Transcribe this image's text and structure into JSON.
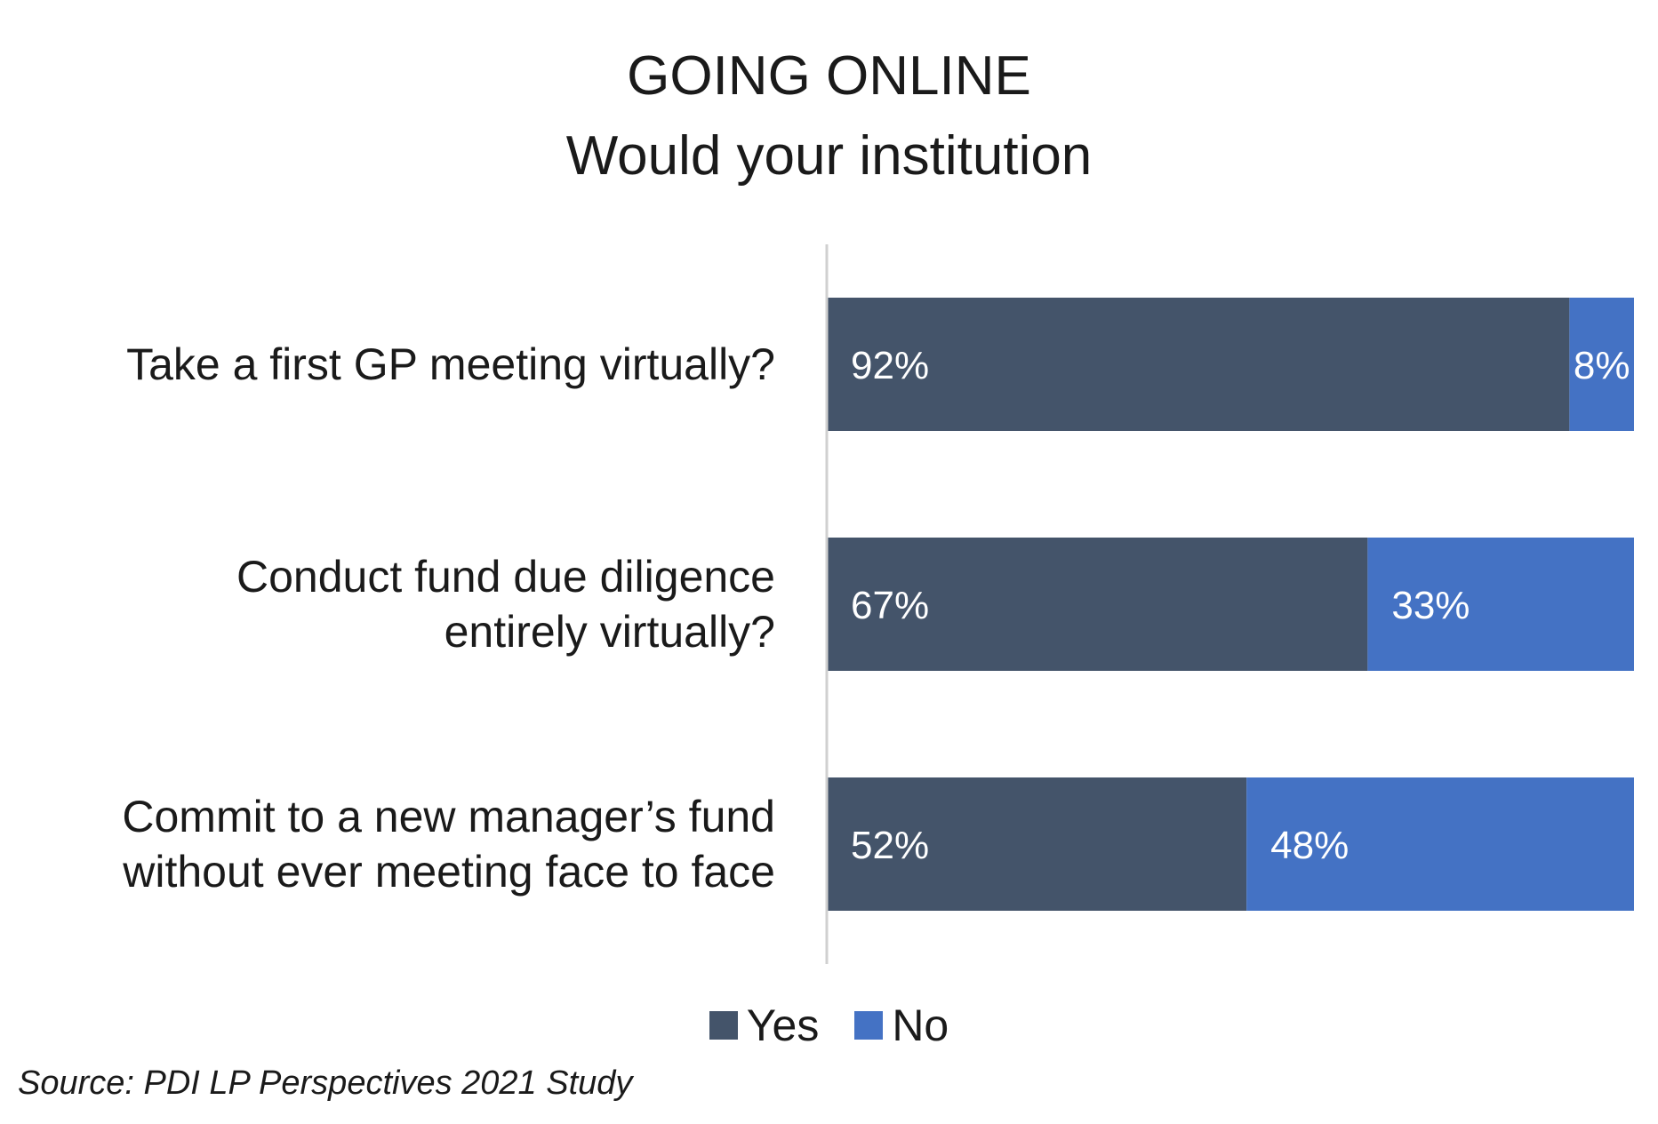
{
  "chart_data": {
    "type": "bar",
    "orientation": "horizontal",
    "stacked": true,
    "title": "GOING ONLINE",
    "subtitle": "Would your institution",
    "categories": [
      [
        "Take a first GP meeting virtually?"
      ],
      [
        "Conduct fund due diligence",
        "entirely virtually?"
      ],
      [
        "Commit to a new manager’s fund",
        "without ever meeting face to face"
      ]
    ],
    "series": [
      {
        "name": "Yes",
        "values": [
          92,
          67,
          52
        ],
        "labels": [
          "92%",
          "67%",
          "52%"
        ],
        "color": "#44546a"
      },
      {
        "name": "No",
        "values": [
          8,
          33,
          48
        ],
        "labels": [
          "8%",
          "33%",
          "48%"
        ],
        "color": "#4472c4"
      }
    ],
    "xlim": [
      0,
      100
    ],
    "unit": "%",
    "legend_position": "bottom",
    "grid": false
  },
  "source": "Source: PDI LP Perspectives 2021 Study"
}
